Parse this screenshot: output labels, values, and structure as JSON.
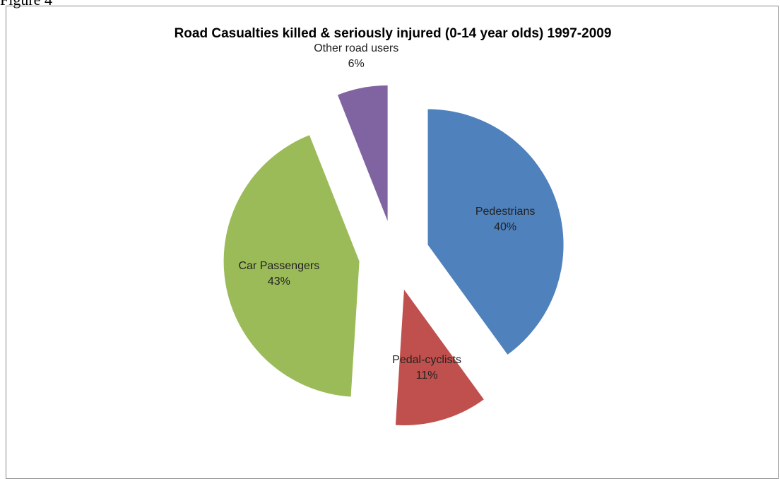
{
  "caption": "Figure 4",
  "chart_data": {
    "type": "pie",
    "title": "Road Casualties killed & seriously injured (0-14 year olds) 1997-2009",
    "categories": [
      "Pedestrians",
      "Pedal-cyclists",
      "Car Passengers",
      "Other road users"
    ],
    "values": [
      40,
      11,
      43,
      6
    ],
    "value_labels": [
      "40%",
      "11%",
      "43%",
      "6%"
    ],
    "colors": [
      "#4f81bd",
      "#c0504d",
      "#9bbb59",
      "#8064a2"
    ]
  }
}
